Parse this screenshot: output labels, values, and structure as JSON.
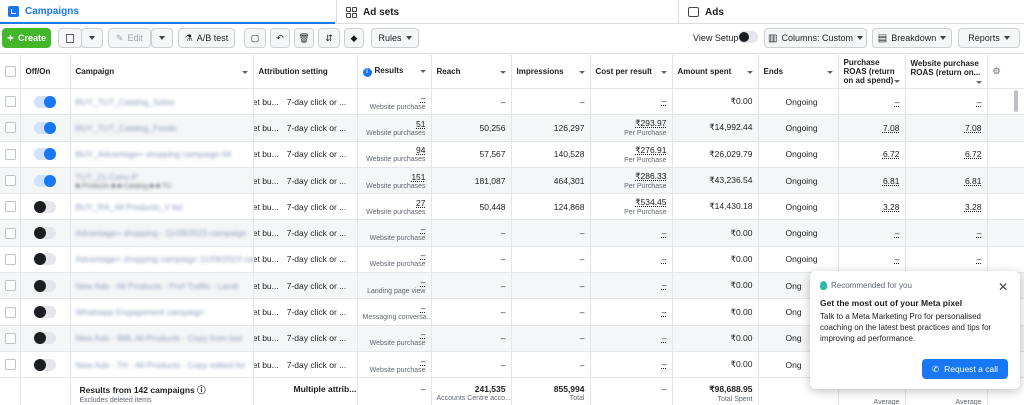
{
  "tabs": {
    "campaigns": "Campaigns",
    "adsets": "Ad sets",
    "ads": "Ads"
  },
  "toolbar": {
    "create": "Create",
    "edit": "Edit",
    "ab_test": "A/B test",
    "rules": "Rules",
    "view_setup": "View Setup",
    "columns": "Columns: Custom",
    "breakdown": "Breakdown",
    "reports": "Reports"
  },
  "columns": {
    "offon": "Off/On",
    "campaign": "Campaign",
    "attribution": "Attribution setting",
    "results": "Results",
    "reach": "Reach",
    "impressions": "Impressions",
    "cpr": "Cost per result",
    "spent": "Amount spent",
    "ends": "Ends",
    "roas": "Purchase ROAS (return on ad spend)",
    "web_roas": "Website purchase ROAS (return on..."
  },
  "rows": [
    {
      "on": true,
      "name": "BUY_TUT_Catalog_Salsa",
      "extra": "",
      "bidset": "set bu...",
      "attr": "7-day click or ...",
      "results": "–",
      "results_sub": "Website purchase",
      "reach": "–",
      "impr": "–",
      "cpr": "–",
      "cpr_sub": "",
      "spent": "₹0.00",
      "ends": "Ongoing",
      "roas": "–",
      "wroas": "–"
    },
    {
      "on": true,
      "name": "BUY_TUT_Catalog_Foods",
      "extra": "",
      "bidset": "set bu...",
      "attr": "7-day click or ...",
      "results": "51",
      "results_sub": "Website purchases",
      "reach": "50,256",
      "impr": "126,297",
      "cpr": "₹293.97",
      "cpr_sub": "Per Purchase",
      "spent": "₹14,992.44",
      "ends": "Ongoing",
      "roas": "7.08",
      "wroas": "7.08"
    },
    {
      "on": true,
      "name": "BUY_Advantage+ shopping campaign 04",
      "extra": "",
      "bidset": "set bu...",
      "attr": "7-day click or ...",
      "results": "94",
      "results_sub": "Website purchases",
      "reach": "57,567",
      "impr": "140,528",
      "cpr": "₹276.91",
      "cpr_sub": "Per Purchase",
      "spent": "₹26,029.79",
      "ends": "Ongoing",
      "roas": "6.72",
      "wroas": "6.72"
    },
    {
      "on": true,
      "name": "TUT_21-Conv-P",
      "extra": "■ Products ■ ■ Catalog ■ ■ TU",
      "bidset": "set bu...",
      "attr": "7-day click or ...",
      "results": "151",
      "results_sub": "Website purchases",
      "reach": "181,087",
      "impr": "464,301",
      "cpr": "₹286.33",
      "cpr_sub": "Per Purchase",
      "spent": "₹43,236.54",
      "ends": "Ongoing",
      "roas": "6.81",
      "wroas": "6.81"
    },
    {
      "on": false,
      "name": "BUY_RA_All Products_V list",
      "extra": "",
      "bidset": "set bu...",
      "attr": "7-day click or ...",
      "results": "27",
      "results_sub": "Website purchases",
      "reach": "50,448",
      "impr": "124,868",
      "cpr": "₹534.45",
      "cpr_sub": "Per Purchase",
      "spent": "₹14,430.18",
      "ends": "Ongoing",
      "roas": "3.28",
      "wroas": "3.28"
    },
    {
      "on": false,
      "name": "Advantage+ shopping - 11/09/2023 campaign",
      "extra": "",
      "bidset": "set bu...",
      "attr": "7-day click or ...",
      "results": "–",
      "results_sub": "Website purchase",
      "reach": "–",
      "impr": "–",
      "cpr": "–",
      "cpr_sub": "",
      "spent": "₹0.00",
      "ends": "Ongoing",
      "roas": "–",
      "wroas": "–"
    },
    {
      "on": false,
      "name": "Advantage+ shopping campaign 11/09/2023 cam",
      "extra": "",
      "bidset": "set bu...",
      "attr": "7-day click or ...",
      "results": "–",
      "results_sub": "Website purchase",
      "reach": "–",
      "impr": "–",
      "cpr": "–",
      "cpr_sub": "",
      "spent": "₹0.00",
      "ends": "Ongoing",
      "roas": "–",
      "wroas": "–"
    },
    {
      "on": false,
      "name": "New Ads - All Products - Prof Traffic - Landi",
      "extra": "",
      "bidset": "set bu...",
      "attr": "7-day click or ...",
      "results": "–",
      "results_sub": "Landing page view",
      "reach": "–",
      "impr": "–",
      "cpr": "–",
      "cpr_sub": "",
      "spent": "₹0.00",
      "ends": "Ong",
      "roas": "",
      "wroas": ""
    },
    {
      "on": false,
      "name": "Whatsapp Engagement campaign",
      "extra": "",
      "bidset": "set bu...",
      "attr": "7-day click or ...",
      "results": "–",
      "results_sub": "Messaging conversa...",
      "reach": "–",
      "impr": "–",
      "cpr": "–",
      "cpr_sub": "",
      "spent": "₹0.00",
      "ends": "Ong",
      "roas": "",
      "wroas": ""
    },
    {
      "on": false,
      "name": "New Ads - 9ML All Products - Copy from last",
      "extra": "",
      "bidset": "set bu...",
      "attr": "7-day click or ...",
      "results": "–",
      "results_sub": "Website purchase",
      "reach": "–",
      "impr": "–",
      "cpr": "–",
      "cpr_sub": "",
      "spent": "₹0.00",
      "ends": "Ong",
      "roas": "",
      "wroas": ""
    },
    {
      "on": false,
      "name": "New Ads - TH - All Products - Copy edited for",
      "extra": "",
      "bidset": "set bu...",
      "attr": "7-day click or ...",
      "results": "–",
      "results_sub": "Website purchase",
      "reach": "–",
      "impr": "–",
      "cpr": "–",
      "cpr_sub": "",
      "spent": "₹0.00",
      "ends": "Ong",
      "roas": "",
      "wroas": ""
    }
  ],
  "footer": {
    "label": "Results from 142 campaigns",
    "sub": "Excludes deleted items",
    "attr": "Multiple attrib...",
    "results": "–",
    "reach": "241,535",
    "reach_sub": "Accounts Centre acco...",
    "impr": "855,994",
    "impr_sub": "Total",
    "cpr": "–",
    "spent": "₹98,688.95",
    "spent_sub": "Total Spent",
    "roas_sub": "Average",
    "wroas_sub": "Average"
  },
  "popup": {
    "rec": "Recommended for you",
    "title": "Get the most out of your Meta pixel",
    "body": "Talk to a Meta Marketing Pro for personalised coaching on the latest best practices and tips for improving ad performance.",
    "cta": "Request a call"
  }
}
